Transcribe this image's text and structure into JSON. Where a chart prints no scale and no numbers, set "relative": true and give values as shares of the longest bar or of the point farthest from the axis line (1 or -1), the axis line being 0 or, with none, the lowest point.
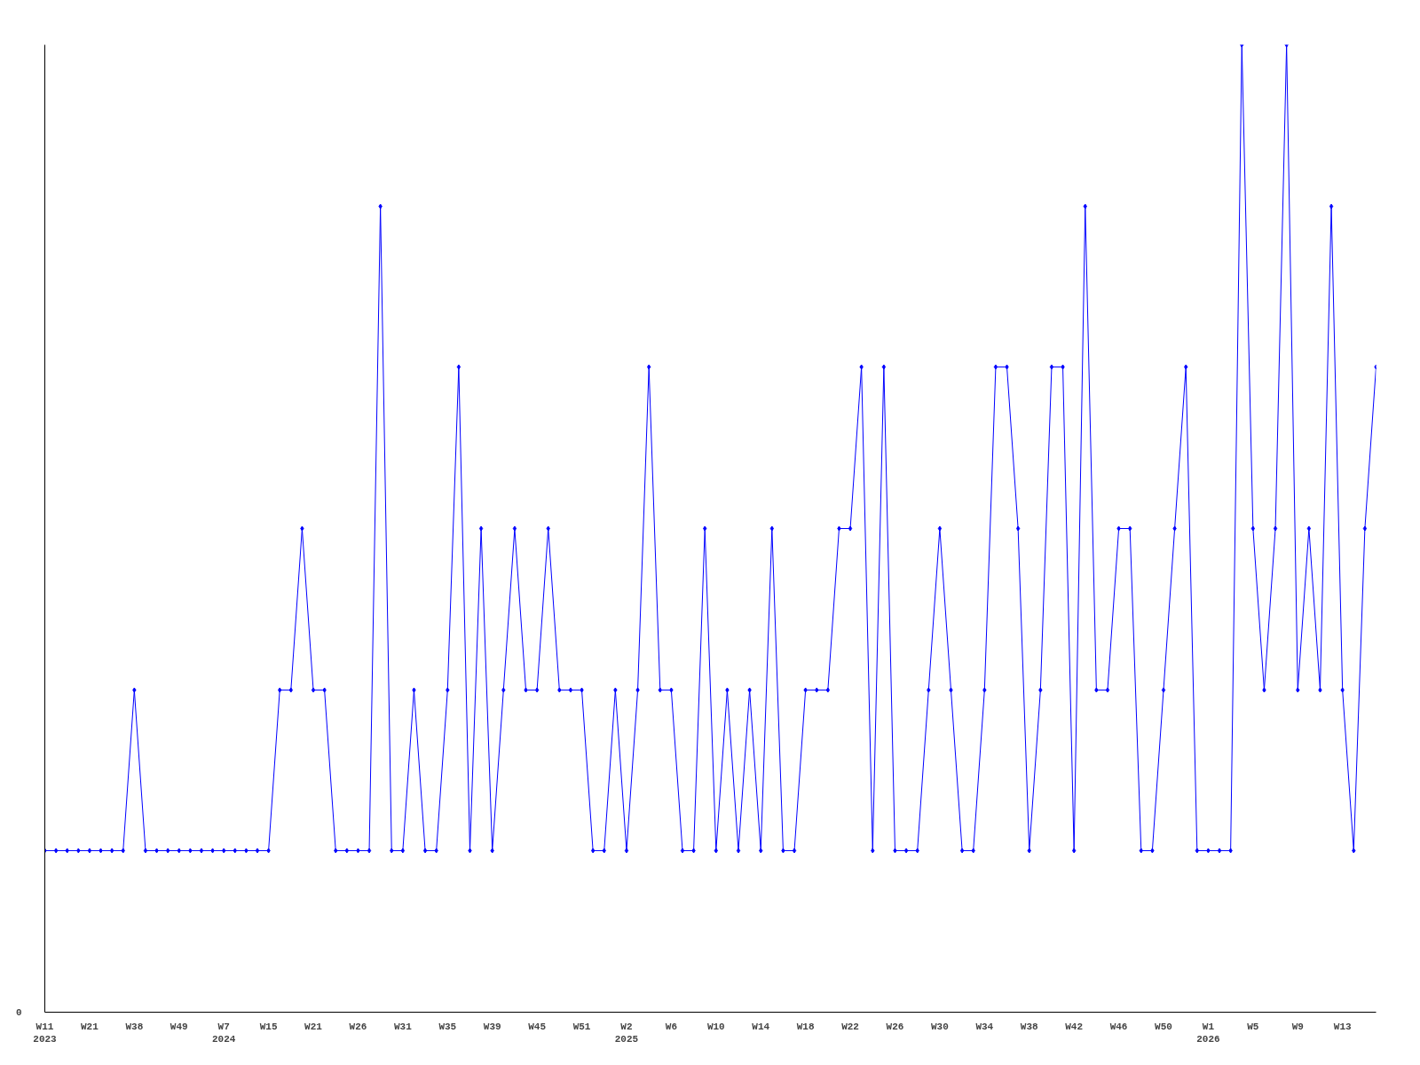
{
  "chart_data": {
    "type": "line",
    "relative": true,
    "color": "#0000ff",
    "marker": "diamond",
    "grid": false,
    "annotations": [
      "0"
    ],
    "categories": [
      "W11\n2023",
      null,
      null,
      null,
      "W21",
      null,
      null,
      null,
      "W38",
      null,
      null,
      null,
      "W49",
      null,
      null,
      null,
      "W7\n2024",
      null,
      null,
      null,
      "W15",
      null,
      null,
      null,
      "W21",
      null,
      null,
      null,
      "W26",
      null,
      null,
      null,
      "W31",
      null,
      null,
      null,
      "W35",
      null,
      null,
      null,
      "W39",
      null,
      null,
      null,
      "W45",
      null,
      null,
      null,
      "W51",
      null,
      null,
      null,
      "W2\n2025",
      null,
      null,
      null,
      "W6",
      null,
      null,
      null,
      "W10",
      null,
      null,
      null,
      "W14",
      null,
      null,
      null,
      "W18",
      null,
      null,
      null,
      "W22",
      null,
      null,
      null,
      "W26",
      null,
      null,
      null,
      "W30",
      null,
      null,
      null,
      "W34",
      null,
      null,
      null,
      "W38",
      null,
      null,
      null,
      "W42",
      null,
      null,
      null,
      "W46",
      null,
      null,
      null,
      "W50",
      null,
      null,
      null,
      "W1\n2026",
      null,
      null,
      null,
      "W5",
      null,
      null,
      null,
      "W9",
      null,
      null,
      null,
      "W13",
      null,
      null,
      null
    ],
    "values": [
      0.167,
      0.167,
      0.167,
      0.167,
      0.167,
      0.167,
      0.167,
      0.167,
      0.333,
      0.167,
      0.167,
      0.167,
      0.167,
      0.167,
      0.167,
      0.167,
      0.167,
      0.167,
      0.167,
      0.167,
      0.167,
      0.333,
      0.333,
      0.5,
      0.333,
      0.333,
      0.167,
      0.167,
      0.167,
      0.167,
      0.833,
      0.167,
      0.167,
      0.333,
      0.167,
      0.167,
      0.333,
      0.667,
      0.167,
      0.5,
      0.167,
      0.333,
      0.5,
      0.333,
      0.333,
      0.5,
      0.333,
      0.333,
      0.333,
      0.167,
      0.167,
      0.333,
      0.167,
      0.333,
      0.667,
      0.333,
      0.333,
      0.167,
      0.167,
      0.5,
      0.167,
      0.333,
      0.167,
      0.333,
      0.167,
      0.5,
      0.167,
      0.167,
      0.333,
      0.333,
      0.333,
      0.5,
      0.5,
      0.667,
      0.167,
      0.667,
      0.167,
      0.167,
      0.167,
      0.333,
      0.5,
      0.333,
      0.167,
      0.167,
      0.333,
      0.667,
      0.667,
      0.5,
      0.167,
      0.333,
      0.667,
      0.667,
      0.167,
      0.833,
      0.333,
      0.333,
      0.5,
      0.5,
      0.167,
      0.167,
      0.333,
      0.5,
      0.667,
      0.167,
      0.167,
      0.167,
      0.167,
      1,
      0.5,
      0.333,
      0.5,
      1,
      0.333,
      0.5,
      0.333,
      0.833,
      0.333,
      0.167,
      0.5,
      0.667
    ]
  }
}
